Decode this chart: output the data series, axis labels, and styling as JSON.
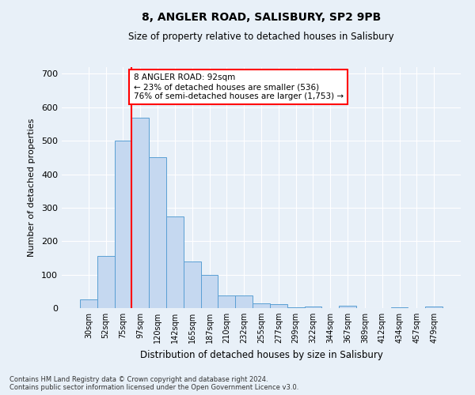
{
  "title": "8, ANGLER ROAD, SALISBURY, SP2 9PB",
  "subtitle": "Size of property relative to detached houses in Salisbury",
  "xlabel": "Distribution of detached houses by size in Salisbury",
  "ylabel": "Number of detached properties",
  "categories": [
    "30sqm",
    "52sqm",
    "75sqm",
    "97sqm",
    "120sqm",
    "142sqm",
    "165sqm",
    "187sqm",
    "210sqm",
    "232sqm",
    "255sqm",
    "277sqm",
    "299sqm",
    "322sqm",
    "344sqm",
    "367sqm",
    "389sqm",
    "412sqm",
    "434sqm",
    "457sqm",
    "479sqm"
  ],
  "values": [
    25,
    155,
    500,
    570,
    450,
    275,
    140,
    100,
    37,
    37,
    15,
    12,
    3,
    5,
    0,
    8,
    0,
    0,
    2,
    0,
    5
  ],
  "bar_color": "#c5d8f0",
  "bar_edge_color": "#5a9fd4",
  "vline_x_index": 3,
  "vline_color": "red",
  "annotation_text": "8 ANGLER ROAD: 92sqm\n← 23% of detached houses are smaller (536)\n76% of semi-detached houses are larger (1,753) →",
  "annotation_box_color": "white",
  "annotation_box_edge_color": "red",
  "ylim": [
    0,
    720
  ],
  "yticks": [
    0,
    100,
    200,
    300,
    400,
    500,
    600,
    700
  ],
  "background_color": "#e8f0f8",
  "grid_color": "white",
  "footer_line1": "Contains HM Land Registry data © Crown copyright and database right 2024.",
  "footer_line2": "Contains public sector information licensed under the Open Government Licence v3.0."
}
